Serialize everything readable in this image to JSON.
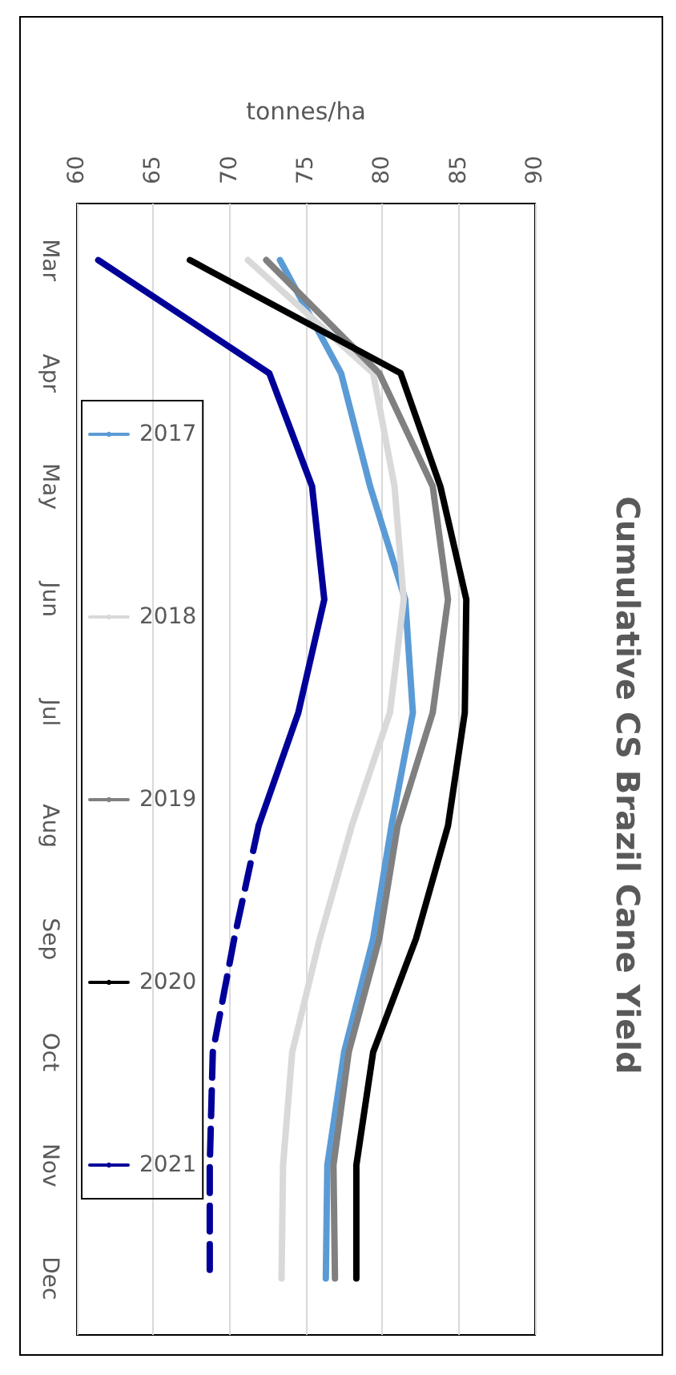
{
  "chart_data": {
    "type": "line",
    "title": "Cumulative CS Brazil Cane Yield",
    "xlabel": "tonnes/ha",
    "orientation": "horizontal",
    "categories": [
      "Mar",
      "Apr",
      "May",
      "Jun",
      "Jul",
      "Aug",
      "Sep",
      "Oct",
      "Nov",
      "Dec"
    ],
    "series": [
      {
        "name": "2017",
        "color": "#5b9bd5",
        "values": [
          73.3,
          77.3,
          79.2,
          81.5,
          82.0,
          80.6,
          79.4,
          77.5,
          76.4,
          76.3
        ]
      },
      {
        "name": "2018",
        "color": "#d9d9d9",
        "values": [
          71.2,
          79.4,
          80.8,
          81.4,
          80.5,
          78.0,
          75.9,
          74.1,
          73.5,
          73.4
        ]
      },
      {
        "name": "2019",
        "color": "#808080",
        "values": [
          72.4,
          79.8,
          83.3,
          84.3,
          83.3,
          81.0,
          79.8,
          77.8,
          76.8,
          76.9
        ]
      },
      {
        "name": "2020",
        "color": "#000000",
        "values": [
          67.4,
          81.2,
          83.8,
          85.5,
          85.4,
          84.3,
          82.2,
          79.4,
          78.3,
          78.3
        ]
      },
      {
        "name": "2021",
        "color": "#000099",
        "values": [
          61.4,
          72.6,
          75.4,
          76.2,
          74.5,
          71.9,
          null,
          null,
          null,
          null
        ]
      },
      {
        "color": "#000099",
        "line_style": "dashed",
        "values": [
          null,
          null,
          null,
          null,
          null,
          71.9,
          70.3,
          68.9,
          68.7,
          68.7
        ]
      }
    ],
    "xlim": [
      60,
      90
    ],
    "xticks": [
      60,
      65,
      70,
      75,
      80,
      85,
      90
    ],
    "grid": "x",
    "legend": "left",
    "marker": "none",
    "line_style": "solid"
  }
}
